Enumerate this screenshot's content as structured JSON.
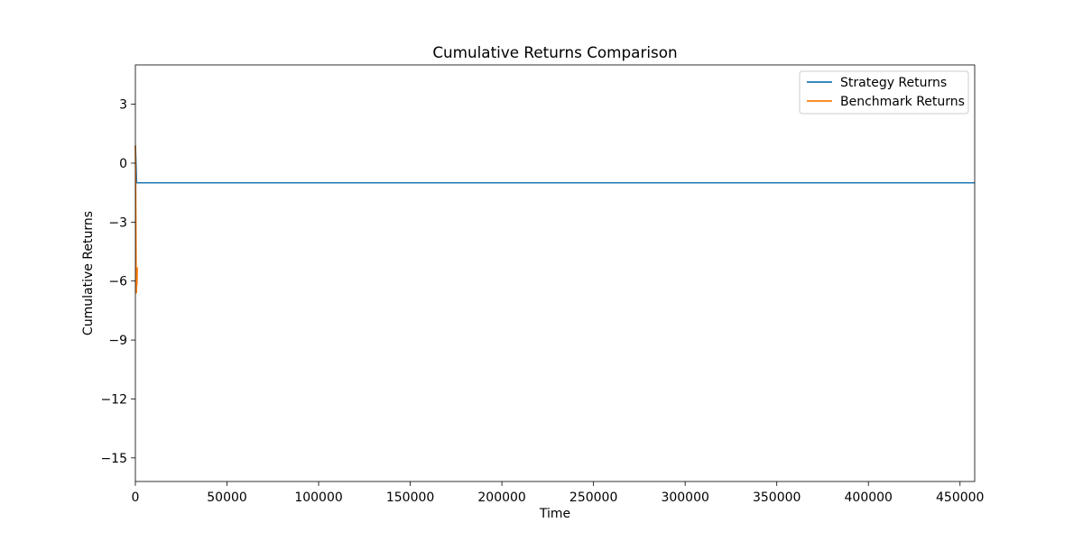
{
  "chart_data": {
    "type": "line",
    "title": "Cumulative Returns Comparison",
    "xlabel": "Time",
    "ylabel": "Cumulative Returns",
    "xlim": [
      0,
      458000
    ],
    "ylim": [
      -16.2,
      5.0
    ],
    "xticks": [
      0,
      50000,
      100000,
      150000,
      200000,
      250000,
      300000,
      350000,
      400000,
      450000
    ],
    "xtick_labels": [
      "0",
      "50000",
      "100000",
      "150000",
      "200000",
      "250000",
      "300000",
      "350000",
      "400000",
      "450000"
    ],
    "yticks": [
      3,
      0,
      -3,
      -6,
      -9,
      -12,
      -15
    ],
    "ytick_labels": [
      "3",
      "0",
      "−3",
      "−6",
      "−9",
      "−12",
      "−15"
    ],
    "grid": false,
    "legend_position": "top-right",
    "series": [
      {
        "name": "Strategy Returns",
        "color": "#1f77b4",
        "points": [
          [
            0,
            0.9
          ],
          [
            300,
            0.2
          ],
          [
            700,
            -1.0
          ],
          [
            458000,
            -1.0
          ]
        ]
      },
      {
        "name": "Benchmark Returns",
        "color": "#ff7f0e",
        "points": [
          [
            0,
            0.9
          ],
          [
            150,
            -0.5
          ],
          [
            300,
            -3.0
          ],
          [
            450,
            -5.5
          ],
          [
            600,
            -6.6
          ],
          [
            750,
            -5.4
          ],
          [
            900,
            -6.2
          ],
          [
            1100,
            -5.3
          ]
        ]
      }
    ]
  }
}
